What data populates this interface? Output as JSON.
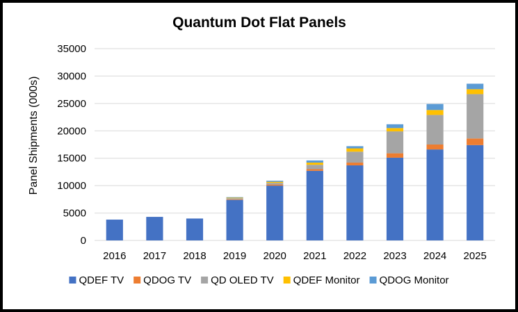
{
  "chart_data": {
    "type": "bar",
    "stacked": true,
    "title": "Quantum Dot Flat Panels",
    "xlabel": "",
    "ylabel": "Panel Shipments (000s)",
    "ylim": [
      0,
      35000
    ],
    "yticks": [
      0,
      5000,
      10000,
      15000,
      20000,
      25000,
      30000,
      35000
    ],
    "grid": true,
    "legend_position": "bottom",
    "categories": [
      "2016",
      "2017",
      "2018",
      "2019",
      "2020",
      "2021",
      "2022",
      "2023",
      "2024",
      "2025"
    ],
    "series": [
      {
        "name": "QDEF TV",
        "color": "#4472c4",
        "values": [
          3800,
          4300,
          4000,
          7400,
          10000,
          12700,
          13700,
          15100,
          16600,
          17400
        ]
      },
      {
        "name": "QDOG TV",
        "color": "#ed7d31",
        "values": [
          0,
          0,
          0,
          100,
          200,
          300,
          500,
          800,
          900,
          1200
        ]
      },
      {
        "name": "QD OLED TV",
        "color": "#a5a5a5",
        "values": [
          0,
          0,
          0,
          200,
          300,
          800,
          2000,
          4000,
          5400,
          8100
        ]
      },
      {
        "name": "QDEF Monitor",
        "color": "#ffc000",
        "values": [
          0,
          0,
          0,
          100,
          200,
          400,
          600,
          600,
          900,
          900
        ]
      },
      {
        "name": "QDOG Monitor",
        "color": "#5b9bd5",
        "values": [
          0,
          0,
          0,
          100,
          200,
          400,
          400,
          700,
          1100,
          1000
        ]
      }
    ]
  }
}
